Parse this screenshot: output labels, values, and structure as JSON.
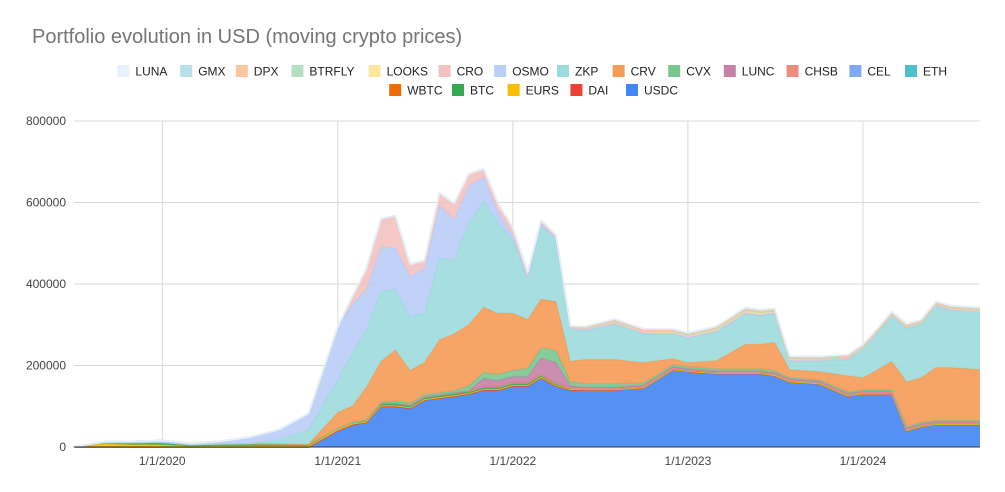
{
  "chart_data": {
    "type": "area",
    "stacked": true,
    "title": "Portfolio evolution in USD (moving crypto prices)",
    "xlabel": "",
    "ylabel": "",
    "x_range": [
      "2019-07-01",
      "2024-09-01"
    ],
    "ylim": [
      0,
      800000
    ],
    "grid": true,
    "legend": "top",
    "x_ticks": [
      "1/1/2020",
      "1/1/2021",
      "1/1/2022",
      "1/1/2023",
      "1/1/2024"
    ],
    "y_ticks": [
      "0",
      "200000",
      "400000",
      "600000",
      "800000"
    ],
    "x": [
      "2019-07-01",
      "2019-09-01",
      "2019-11-01",
      "2020-01-01",
      "2020-03-01",
      "2020-05-01",
      "2020-07-01",
      "2020-09-01",
      "2020-11-01",
      "2021-01-01",
      "2021-02-01",
      "2021-03-01",
      "2021-04-01",
      "2021-05-01",
      "2021-06-01",
      "2021-07-01",
      "2021-08-01",
      "2021-09-01",
      "2021-10-01",
      "2021-11-01",
      "2021-12-01",
      "2022-01-01",
      "2022-02-01",
      "2022-03-01",
      "2022-04-01",
      "2022-05-01",
      "2022-06-01",
      "2022-08-01",
      "2022-10-01",
      "2022-12-01",
      "2023-01-01",
      "2023-03-01",
      "2023-05-01",
      "2023-06-01",
      "2023-07-01",
      "2023-08-01",
      "2023-10-01",
      "2023-12-01",
      "2024-01-01",
      "2024-02-01",
      "2024-03-01",
      "2024-04-01",
      "2024-05-01",
      "2024-06-01",
      "2024-07-01",
      "2024-09-01"
    ],
    "series": [
      {
        "name": "LUNA",
        "color": "#e8f0fe",
        "values": [
          0,
          0,
          0,
          0,
          0,
          0,
          0,
          0,
          0,
          0,
          0,
          0,
          0,
          0,
          0,
          0,
          0,
          0,
          0,
          0,
          0,
          0,
          0,
          0,
          0,
          0,
          0,
          0,
          0,
          0,
          0,
          0,
          0,
          0,
          0,
          0,
          0,
          0,
          0,
          0,
          0,
          0,
          0,
          0,
          0,
          0
        ]
      },
      {
        "name": "GMX",
        "color": "#b7e1e6",
        "values": [
          0,
          0,
          0,
          0,
          0,
          0,
          0,
          0,
          0,
          0,
          0,
          0,
          0,
          0,
          0,
          0,
          0,
          0,
          0,
          0,
          0,
          0,
          0,
          0,
          0,
          0,
          2000,
          3000,
          3000,
          3000,
          3000,
          3000,
          3000,
          3000,
          3000,
          3000,
          3000,
          3000,
          3000,
          3000,
          3000,
          3000,
          3000,
          3000,
          3000,
          3000
        ]
      },
      {
        "name": "DPX",
        "color": "#f6c7a1",
        "values": [
          0,
          0,
          0,
          0,
          0,
          0,
          0,
          0,
          0,
          0,
          0,
          0,
          0,
          0,
          0,
          0,
          0,
          0,
          0,
          0,
          0,
          0,
          0,
          0,
          0,
          0,
          2000,
          3000,
          3000,
          3000,
          3000,
          3000,
          4000,
          4000,
          3000,
          3000,
          3000,
          3000,
          3000,
          3000,
          3000,
          3000,
          3000,
          3000,
          3000,
          3000
        ]
      },
      {
        "name": "BTRFLY",
        "color": "#b6dfc0",
        "values": [
          0,
          0,
          0,
          0,
          0,
          0,
          0,
          0,
          0,
          0,
          0,
          0,
          0,
          0,
          0,
          0,
          0,
          0,
          0,
          0,
          0,
          0,
          0,
          0,
          0,
          0,
          0,
          0,
          0,
          0,
          0,
          0,
          0,
          0,
          0,
          0,
          0,
          0,
          0,
          0,
          0,
          0,
          0,
          0,
          0,
          0
        ]
      },
      {
        "name": "LOOKS",
        "color": "#fde7a0",
        "values": [
          0,
          0,
          0,
          0,
          0,
          0,
          0,
          0,
          0,
          0,
          0,
          0,
          0,
          0,
          0,
          0,
          0,
          0,
          0,
          0,
          0,
          0,
          0,
          0,
          0,
          0,
          2000,
          3000,
          3000,
          3000,
          3000,
          4000,
          4000,
          4000,
          3000,
          3000,
          2000,
          2000,
          2000,
          2000,
          2000,
          2000,
          2000,
          2000,
          2000,
          2000
        ]
      },
      {
        "name": "CRO",
        "color": "#f3c2c0",
        "values": [
          0,
          0,
          0,
          0,
          0,
          0,
          0,
          0,
          0,
          0,
          20000,
          50000,
          70000,
          80000,
          30000,
          20000,
          30000,
          40000,
          30000,
          20000,
          20000,
          20000,
          10000,
          8000,
          8000,
          5000,
          3000,
          3000,
          2000,
          2000,
          2000,
          2000,
          2000,
          2000,
          2000,
          2000,
          2000,
          2000,
          2000,
          2000,
          2000,
          2000,
          2000,
          2000,
          2000,
          2000
        ]
      },
      {
        "name": "OSMO",
        "color": "#b9cdf7",
        "values": [
          0,
          2000,
          3000,
          4000,
          3000,
          6000,
          15000,
          25000,
          40000,
          130000,
          120000,
          100000,
          110000,
          100000,
          100000,
          110000,
          130000,
          100000,
          90000,
          60000,
          30000,
          10000,
          5000,
          5000,
          5000,
          2000,
          2000,
          2000,
          2000,
          2000,
          2000,
          2000,
          2000,
          2000,
          2000,
          2000,
          2000,
          2000,
          2000,
          2000,
          2000,
          2000,
          2000,
          2000,
          2000,
          2000
        ]
      },
      {
        "name": "ZKP",
        "color": "#9ddcde",
        "values": [
          0,
          0,
          0,
          0,
          0,
          0,
          0,
          10000,
          35000,
          80000,
          130000,
          140000,
          170000,
          150000,
          130000,
          120000,
          200000,
          180000,
          250000,
          260000,
          220000,
          180000,
          100000,
          180000,
          150000,
          80000,
          70000,
          85000,
          70000,
          60000,
          60000,
          70000,
          75000,
          70000,
          70000,
          20000,
          25000,
          40000,
          70000,
          90000,
          110000,
          130000,
          130000,
          150000,
          140000,
          140000
        ]
      },
      {
        "name": "CRV",
        "color": "#f59b55",
        "values": [
          0,
          0,
          0,
          0,
          0,
          0,
          0,
          0,
          0,
          40000,
          40000,
          80000,
          100000,
          125000,
          80000,
          80000,
          130000,
          140000,
          150000,
          160000,
          150000,
          140000,
          120000,
          120000,
          120000,
          50000,
          60000,
          60000,
          50000,
          15000,
          10000,
          20000,
          60000,
          60000,
          70000,
          20000,
          20000,
          40000,
          30000,
          50000,
          70000,
          110000,
          110000,
          130000,
          130000,
          125000
        ]
      },
      {
        "name": "CVX",
        "color": "#79c691",
        "values": [
          0,
          0,
          0,
          0,
          0,
          0,
          0,
          0,
          0,
          0,
          0,
          0,
          2000,
          5000,
          5000,
          5000,
          5000,
          5000,
          12000,
          15000,
          15000,
          15000,
          20000,
          25000,
          30000,
          10000,
          8000,
          8000,
          5000,
          5000,
          5000,
          5000,
          5000,
          5000,
          5000,
          3000,
          3000,
          3000,
          3000,
          3000,
          3000,
          3000,
          3000,
          3000,
          3000,
          3000
        ]
      },
      {
        "name": "LUNC",
        "color": "#c581a7",
        "values": [
          0,
          0,
          0,
          0,
          0,
          0,
          0,
          0,
          0,
          0,
          0,
          0,
          0,
          0,
          0,
          0,
          0,
          0,
          0,
          20000,
          15000,
          15000,
          15000,
          40000,
          50000,
          5000,
          3000,
          3000,
          3000,
          3000,
          3000,
          3000,
          3000,
          3000,
          3000,
          3000,
          3000,
          3000,
          3000,
          3000,
          3000,
          3000,
          3000,
          3000,
          3000,
          3000
        ]
      },
      {
        "name": "CHSB",
        "color": "#ee8c7e",
        "values": [
          0,
          0,
          0,
          0,
          0,
          0,
          0,
          0,
          0,
          0,
          0,
          0,
          0,
          0,
          0,
          0,
          0,
          0,
          0,
          0,
          0,
          0,
          0,
          0,
          0,
          0,
          0,
          0,
          0,
          0,
          0,
          0,
          0,
          0,
          0,
          0,
          0,
          0,
          0,
          0,
          0,
          0,
          0,
          0,
          0,
          0
        ]
      },
      {
        "name": "CEL",
        "color": "#81a8f2",
        "values": [
          0,
          0,
          0,
          0,
          0,
          0,
          0,
          0,
          0,
          0,
          0,
          0,
          0,
          0,
          0,
          0,
          0,
          0,
          0,
          0,
          0,
          0,
          0,
          0,
          0,
          0,
          0,
          0,
          0,
          0,
          0,
          0,
          0,
          0,
          0,
          0,
          0,
          0,
          0,
          0,
          0,
          0,
          0,
          0,
          0,
          0
        ]
      },
      {
        "name": "ETH",
        "color": "#4fc2c9",
        "values": [
          0,
          0,
          0,
          0,
          0,
          0,
          0,
          0,
          0,
          0,
          0,
          0,
          0,
          0,
          0,
          0,
          0,
          0,
          0,
          0,
          0,
          0,
          0,
          0,
          0,
          0,
          0,
          0,
          0,
          0,
          0,
          0,
          0,
          0,
          0,
          0,
          0,
          0,
          0,
          0,
          0,
          0,
          0,
          0,
          0,
          0
        ]
      },
      {
        "name": "WBTC",
        "color": "#ef6c00",
        "values": [
          0,
          0,
          0,
          0,
          0,
          0,
          0,
          0,
          0,
          0,
          0,
          0,
          0,
          0,
          0,
          0,
          0,
          0,
          0,
          0,
          0,
          0,
          0,
          0,
          0,
          0,
          0,
          0,
          0,
          0,
          0,
          0,
          0,
          0,
          0,
          0,
          0,
          0,
          0,
          0,
          0,
          0,
          0,
          0,
          0,
          0
        ]
      },
      {
        "name": "BTC",
        "color": "#34a853",
        "values": [
          0,
          3000,
          5000,
          6000,
          4000,
          5000,
          6000,
          5000,
          4000,
          2000,
          3000,
          4000,
          6000,
          6000,
          6000,
          6000,
          6000,
          6000,
          6000,
          6000,
          6000,
          6000,
          6000,
          6000,
          5000,
          3000,
          3000,
          3000,
          3000,
          3000,
          3000,
          3000,
          3000,
          3000,
          3000,
          3000,
          3000,
          3000,
          3000,
          3000,
          3000,
          3000,
          3000,
          3000,
          3000,
          3000
        ]
      },
      {
        "name": "EURS",
        "color": "#fbbc04",
        "values": [
          0,
          8000,
          6000,
          6000,
          2000,
          3000,
          3000,
          3000,
          3000,
          3000,
          3000,
          2000,
          2000,
          2000,
          2000,
          2000,
          2000,
          2000,
          2000,
          2000,
          2000,
          2000,
          2000,
          2000,
          2000,
          2000,
          1000,
          1000,
          1000,
          1000,
          1000,
          1000,
          1000,
          1000,
          1000,
          1000,
          1000,
          1000,
          1000,
          1000,
          1000,
          1000,
          1000,
          1000,
          1000,
          1000
        ]
      },
      {
        "name": "DAI",
        "color": "#ea4335",
        "values": [
          0,
          0,
          0,
          0,
          0,
          0,
          0,
          0,
          0,
          0,
          0,
          0,
          0,
          0,
          0,
          0,
          0,
          0,
          0,
          0,
          0,
          0,
          0,
          0,
          0,
          0,
          0,
          0,
          0,
          0,
          0,
          0,
          0,
          0,
          0,
          0,
          0,
          0,
          0,
          0,
          0,
          0,
          0,
          0,
          0,
          0
        ]
      },
      {
        "name": "USDC",
        "color": "#4285f4",
        "values": [
          0,
          0,
          0,
          0,
          0,
          0,
          0,
          0,
          0,
          40000,
          55000,
          60000,
          100000,
          100000,
          95000,
          115000,
          120000,
          125000,
          130000,
          140000,
          140000,
          150000,
          150000,
          170000,
          150000,
          140000,
          140000,
          140000,
          145000,
          190000,
          185000,
          180000,
          180000,
          180000,
          175000,
          160000,
          155000,
          125000,
          130000,
          130000,
          130000,
          40000,
          50000,
          55000,
          55000,
          55000
        ]
      }
    ]
  }
}
